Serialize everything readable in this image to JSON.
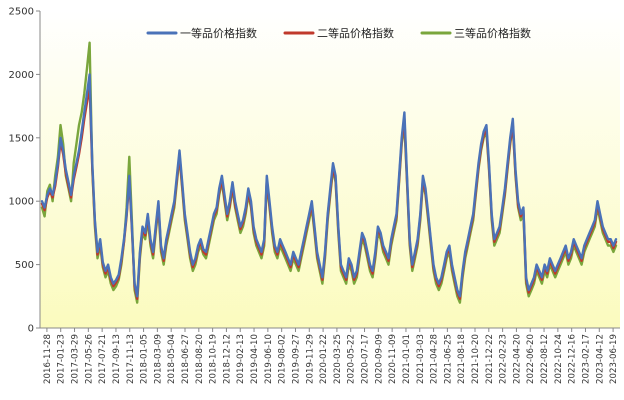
{
  "chart_data": {
    "type": "line",
    "title": "",
    "xlabel": "",
    "ylabel": "",
    "ylim": [
      0,
      2500
    ],
    "y_ticks": [
      0,
      500,
      1000,
      1500,
      2000,
      2500
    ],
    "grid": false,
    "legend_position": "top-center",
    "background": "gradient white-to-light-yellow",
    "x_tick_labels": [
      "2016-11-28",
      "2017-01-23",
      "2017-03-29",
      "2017-05-26",
      "2017-07-21",
      "2017-09-13",
      "2017-11-13",
      "2018-01-05",
      "2018-03-09",
      "2018-05-04",
      "2018-06-27",
      "2018-08-20",
      "2018-10-19",
      "2018-12-12",
      "2019-02-13",
      "2019-04-10",
      "2019-06-10",
      "2019-08-02",
      "2019-09-27",
      "2019-11-29",
      "2020-01-22",
      "2020-03-25",
      "2020-05-22",
      "2020-07-17",
      "2020-09-09",
      "2020-11-09",
      "2021-01-01",
      "2021-03-03",
      "2021-04-28",
      "2021-06-25",
      "2021-08-18",
      "2021-10-20",
      "2021-12-22",
      "2022-02-23",
      "2022-04-20",
      "2022-06-20",
      "2022-08-12",
      "2022-10-24",
      "2022-12-16",
      "2023-02-17",
      "2023-04-12",
      "2023-06-19"
    ],
    "series": [
      {
        "name": "一等品价格指数",
        "color": "#4a72b8",
        "values": [
          1000,
          950,
          1050,
          1100,
          1050,
          1150,
          1300,
          1500,
          1400,
          1250,
          1150,
          1050,
          1200,
          1300,
          1400,
          1550,
          1700,
          1850,
          2000,
          1300,
          850,
          600,
          700,
          520,
          450,
          500,
          400,
          350,
          380,
          420,
          550,
          700,
          900,
          1200,
          800,
          350,
          250,
          600,
          800,
          750,
          900,
          700,
          600,
          800,
          1000,
          650,
          550,
          700,
          800,
          900,
          1000,
          1200,
          1400,
          1150,
          900,
          750,
          600,
          500,
          550,
          650,
          700,
          620,
          600,
          700,
          800,
          900,
          950,
          1100,
          1200,
          1050,
          900,
          1000,
          1150,
          1000,
          900,
          800,
          850,
          950,
          1100,
          1000,
          800,
          700,
          650,
          600,
          700,
          1200,
          1000,
          800,
          650,
          600,
          700,
          650,
          600,
          550,
          500,
          600,
          550,
          500,
          600,
          700,
          800,
          900,
          1000,
          800,
          600,
          500,
          400,
          600,
          900,
          1100,
          1300,
          1200,
          800,
          500,
          450,
          400,
          550,
          500,
          400,
          450,
          600,
          750,
          700,
          600,
          500,
          450,
          600,
          800,
          750,
          650,
          600,
          550,
          700,
          800,
          900,
          1200,
          1500,
          1700,
          1200,
          700,
          500,
          600,
          700,
          900,
          1200,
          1100,
          900,
          700,
          500,
          400,
          350,
          400,
          500,
          600,
          650,
          500,
          400,
          300,
          250,
          450,
          600,
          700,
          800,
          900,
          1100,
          1300,
          1450,
          1550,
          1600,
          1300,
          900,
          700,
          750,
          800,
          950,
          1100,
          1300,
          1500,
          1650,
          1250,
          1000,
          900,
          950,
          400,
          300,
          350,
          400,
          500,
          450,
          400,
          500,
          450,
          550,
          500,
          450,
          500,
          550,
          600,
          650,
          550,
          600,
          700,
          650,
          600,
          550,
          650,
          700,
          750,
          800,
          850,
          1000,
          900,
          800,
          750,
          700,
          700,
          650,
          700
        ]
      },
      {
        "name": "二等品价格指数",
        "color": "#c0392b",
        "values": [
          980,
          930,
          1030,
          1080,
          1030,
          1120,
          1270,
          1470,
          1370,
          1220,
          1120,
          1030,
          1170,
          1270,
          1370,
          1500,
          1650,
          1780,
          1900,
          1260,
          830,
          580,
          680,
          500,
          430,
          480,
          380,
          330,
          360,
          400,
          530,
          680,
          880,
          1170,
          780,
          330,
          230,
          580,
          780,
          730,
          880,
          680,
          580,
          780,
          970,
          630,
          530,
          680,
          780,
          880,
          980,
          1170,
          1370,
          1120,
          880,
          730,
          580,
          480,
          530,
          630,
          680,
          600,
          580,
          680,
          780,
          880,
          930,
          1070,
          1170,
          1020,
          880,
          970,
          1120,
          970,
          880,
          780,
          830,
          930,
          1070,
          970,
          780,
          680,
          630,
          580,
          680,
          1170,
          970,
          780,
          630,
          580,
          680,
          630,
          580,
          530,
          480,
          580,
          530,
          480,
          580,
          680,
          780,
          880,
          970,
          780,
          580,
          480,
          380,
          580,
          880,
          1070,
          1270,
          1170,
          780,
          480,
          430,
          380,
          530,
          480,
          380,
          430,
          580,
          730,
          680,
          580,
          480,
          430,
          580,
          780,
          730,
          630,
          580,
          530,
          680,
          780,
          880,
          1170,
          1470,
          1650,
          1170,
          680,
          480,
          580,
          680,
          880,
          1170,
          1070,
          880,
          680,
          480,
          380,
          330,
          380,
          480,
          580,
          630,
          480,
          380,
          280,
          230,
          430,
          580,
          680,
          780,
          880,
          1070,
          1270,
          1420,
          1520,
          1570,
          1270,
          880,
          680,
          730,
          780,
          930,
          1070,
          1270,
          1470,
          1600,
          1220,
          970,
          880,
          930,
          380,
          280,
          330,
          380,
          480,
          430,
          380,
          480,
          430,
          530,
          480,
          430,
          480,
          530,
          580,
          630,
          530,
          580,
          680,
          630,
          580,
          530,
          630,
          680,
          730,
          780,
          830,
          970,
          880,
          780,
          730,
          680,
          680,
          630,
          680
        ]
      },
      {
        "name": "三等品价格指数",
        "color": "#7aa63c",
        "values": [
          950,
          880,
          1080,
          1130,
          1000,
          1200,
          1350,
          1600,
          1450,
          1200,
          1100,
          1000,
          1300,
          1450,
          1600,
          1700,
          1850,
          2050,
          2250,
          1250,
          800,
          550,
          650,
          480,
          400,
          450,
          350,
          300,
          330,
          380,
          500,
          680,
          950,
          1350,
          850,
          300,
          200,
          550,
          750,
          700,
          850,
          650,
          550,
          750,
          950,
          600,
          500,
          650,
          750,
          850,
          950,
          1150,
          1350,
          1100,
          850,
          700,
          550,
          450,
          500,
          600,
          650,
          580,
          550,
          650,
          750,
          850,
          900,
          1050,
          1150,
          1000,
          850,
          950,
          1100,
          950,
          850,
          750,
          800,
          900,
          1050,
          950,
          750,
          650,
          600,
          550,
          650,
          1150,
          950,
          750,
          600,
          550,
          650,
          600,
          550,
          500,
          450,
          550,
          500,
          450,
          550,
          650,
          750,
          850,
          950,
          750,
          550,
          450,
          350,
          550,
          850,
          1050,
          1250,
          1150,
          750,
          450,
          400,
          350,
          500,
          450,
          350,
          400,
          550,
          700,
          650,
          550,
          450,
          400,
          550,
          750,
          700,
          600,
          550,
          500,
          650,
          750,
          850,
          1150,
          1450,
          1600,
          1150,
          650,
          450,
          550,
          650,
          850,
          1150,
          1050,
          850,
          650,
          450,
          350,
          300,
          350,
          450,
          550,
          600,
          450,
          350,
          250,
          200,
          400,
          550,
          650,
          750,
          850,
          1050,
          1250,
          1400,
          1500,
          1550,
          1250,
          850,
          650,
          700,
          750,
          900,
          1050,
          1250,
          1450,
          1600,
          1200,
          950,
          850,
          900,
          350,
          250,
          300,
          350,
          450,
          400,
          350,
          450,
          400,
          500,
          450,
          400,
          450,
          500,
          550,
          600,
          500,
          550,
          650,
          600,
          550,
          500,
          600,
          650,
          700,
          750,
          800,
          950,
          850,
          750,
          700,
          650,
          650,
          600,
          650
        ]
      }
    ]
  }
}
